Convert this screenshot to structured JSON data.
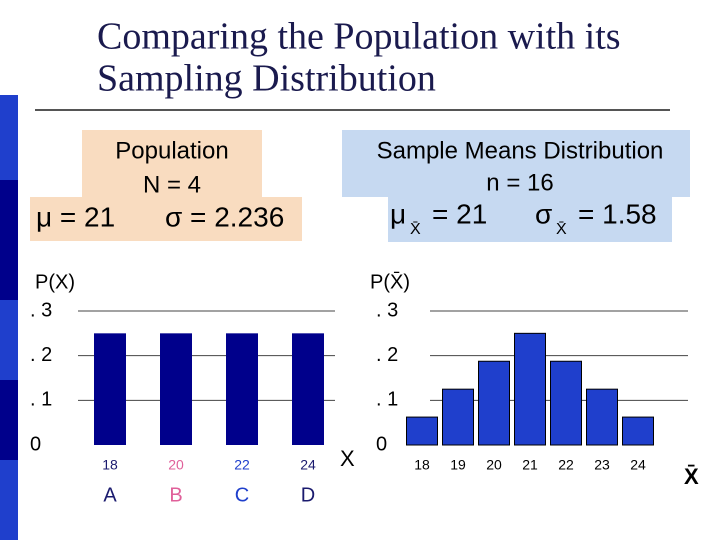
{
  "slide": {
    "title": [
      "Comparing the Population with its",
      "Sampling Distribution"
    ],
    "population": {
      "heading": "Population",
      "size": "N = 4",
      "mu": "μ = 21",
      "sigma": "σ = 2.236"
    },
    "sampling": {
      "heading": "Sample Means Distribution",
      "size": "n = 16",
      "mu": "μ",
      "mu_sub": "X̄",
      "mu_value": "= 21",
      "sigma": "σ",
      "sigma_sub": "X̄",
      "sigma_value": "= 1.58"
    }
  },
  "chart_data": [
    {
      "type": "bar",
      "ylabel": "P(X)",
      "xlabel": "X",
      "categories": [
        "18",
        "20",
        "22",
        "24"
      ],
      "category_letters": [
        "A",
        "B",
        "C",
        "D"
      ],
      "letter_colors": [
        "#1a1a6e",
        "#e0609a",
        "#1f3fcc",
        "#1a1a6e"
      ],
      "values": [
        0.25,
        0.25,
        0.25,
        0.25
      ],
      "color": "#00008b",
      "ylim": [
        0,
        0.3
      ],
      "yticks": [
        {
          "value": 0,
          "label": "0"
        },
        {
          "value": 0.1,
          "label": ". 1"
        },
        {
          "value": 0.2,
          "label": ". 2"
        },
        {
          "value": 0.3,
          "label": ". 3"
        }
      ],
      "grid": true
    },
    {
      "type": "bar",
      "ylabel": "P(X̄)",
      "xlabel": "X̄",
      "categories": [
        "18",
        "19",
        "20",
        "21",
        "22",
        "23",
        "24"
      ],
      "values": [
        0.0625,
        0.125,
        0.1875,
        0.25,
        0.1875,
        0.125,
        0.0625
      ],
      "color": "#1f3fcc",
      "ylim": [
        0,
        0.3
      ],
      "yticks": [
        {
          "value": 0,
          "label": "0"
        },
        {
          "value": 0.1,
          "label": ". 1"
        },
        {
          "value": 0.2,
          "label": ". 2"
        },
        {
          "value": 0.3,
          "label": ". 3"
        }
      ],
      "grid": true
    }
  ]
}
